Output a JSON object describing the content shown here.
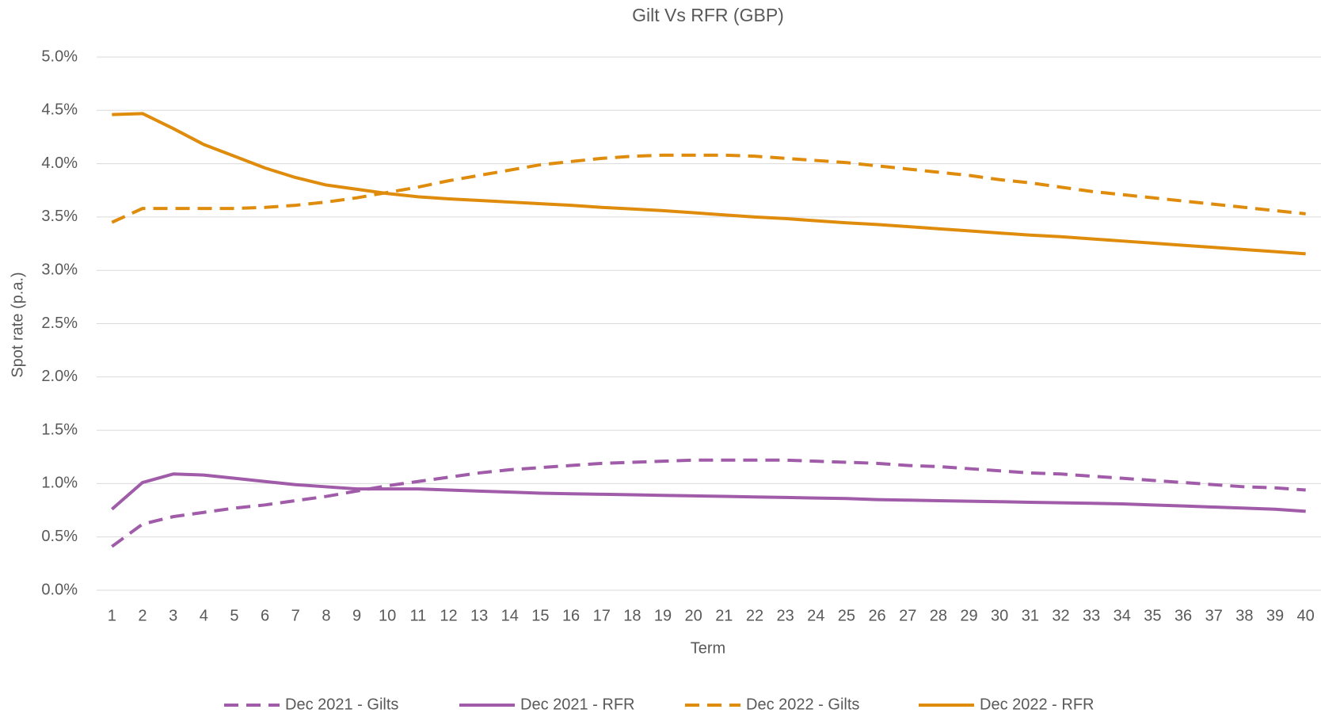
{
  "chart_data": {
    "type": "line",
    "title": "Gilt Vs RFR (GBP)",
    "x_label": "Term",
    "y_label": "Spot rate (p.a.)",
    "categories": [
      1,
      2,
      3,
      4,
      5,
      6,
      7,
      8,
      9,
      10,
      11,
      12,
      13,
      14,
      15,
      16,
      17,
      18,
      19,
      20,
      21,
      22,
      23,
      24,
      25,
      26,
      27,
      28,
      29,
      30,
      31,
      32,
      33,
      34,
      35,
      36,
      37,
      38,
      39,
      40
    ],
    "ylim": [
      0,
      5
    ],
    "yticks": [
      {
        "value": 0,
        "label": "0.0%"
      },
      {
        "value": 0.5,
        "label": "0.5%"
      },
      {
        "value": 1,
        "label": "1.0%"
      },
      {
        "value": 1.5,
        "label": "1.5%"
      },
      {
        "value": 2,
        "label": "2.0%"
      },
      {
        "value": 2.5,
        "label": "2.5%"
      },
      {
        "value": 3,
        "label": "3.0%"
      },
      {
        "value": 3.5,
        "label": "3.5%"
      },
      {
        "value": 4,
        "label": "4.0%"
      },
      {
        "value": 4.5,
        "label": "4.5%"
      },
      {
        "value": 5,
        "label": "5.0%"
      }
    ],
    "grid": true,
    "legend": "bottom",
    "series": [
      {
        "name": "Dec 2021 - Gilts",
        "color": "#a05ca8",
        "dashed": true,
        "values": [
          0.41,
          0.62,
          0.69,
          0.73,
          0.77,
          0.8,
          0.84,
          0.88,
          0.93,
          0.98,
          1.02,
          1.06,
          1.1,
          1.13,
          1.15,
          1.17,
          1.19,
          1.2,
          1.21,
          1.22,
          1.22,
          1.22,
          1.22,
          1.21,
          1.2,
          1.19,
          1.17,
          1.16,
          1.14,
          1.12,
          1.1,
          1.09,
          1.07,
          1.05,
          1.03,
          1.01,
          0.99,
          0.97,
          0.96,
          0.94
        ]
      },
      {
        "name": "Dec 2021 - RFR",
        "color": "#a05ca8",
        "dashed": false,
        "values": [
          0.76,
          1.01,
          1.09,
          1.08,
          1.05,
          1.02,
          0.99,
          0.97,
          0.95,
          0.95,
          0.95,
          0.94,
          0.93,
          0.92,
          0.91,
          0.905,
          0.9,
          0.895,
          0.89,
          0.885,
          0.88,
          0.875,
          0.87,
          0.865,
          0.86,
          0.85,
          0.845,
          0.84,
          0.835,
          0.83,
          0.825,
          0.82,
          0.815,
          0.81,
          0.8,
          0.79,
          0.78,
          0.77,
          0.76,
          0.74
        ]
      },
      {
        "name": "Dec 2022 - Gilts",
        "color": "#df8c0c",
        "dashed": true,
        "values": [
          3.45,
          3.58,
          3.58,
          3.58,
          3.58,
          3.59,
          3.61,
          3.64,
          3.68,
          3.73,
          3.78,
          3.84,
          3.89,
          3.94,
          3.99,
          4.02,
          4.05,
          4.07,
          4.08,
          4.08,
          4.08,
          4.07,
          4.05,
          4.03,
          4.01,
          3.98,
          3.95,
          3.92,
          3.89,
          3.85,
          3.82,
          3.78,
          3.74,
          3.71,
          3.68,
          3.65,
          3.62,
          3.59,
          3.56,
          3.53
        ]
      },
      {
        "name": "Dec 2022 - RFR",
        "color": "#df8c0c",
        "dashed": false,
        "values": [
          4.46,
          4.47,
          4.33,
          4.18,
          4.07,
          3.96,
          3.87,
          3.8,
          3.76,
          3.72,
          3.69,
          3.67,
          3.655,
          3.64,
          3.625,
          3.61,
          3.59,
          3.575,
          3.56,
          3.54,
          3.52,
          3.5,
          3.485,
          3.465,
          3.445,
          3.43,
          3.41,
          3.39,
          3.37,
          3.35,
          3.33,
          3.315,
          3.295,
          3.275,
          3.255,
          3.235,
          3.215,
          3.195,
          3.175,
          3.155
        ]
      }
    ]
  }
}
